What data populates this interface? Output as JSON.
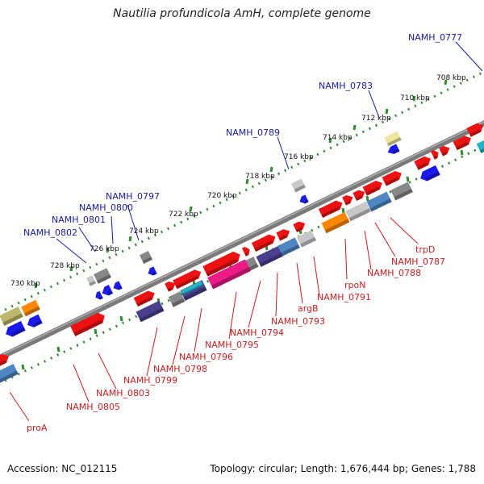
{
  "title": "Nautilia profundicola AmH, complete genome",
  "footer": {
    "accession": "Accession: NC_012115",
    "topology": "Topology: circular; Length: 1,676,444 bp; Genes: 1,788"
  },
  "scale_labels": [
    {
      "label": "708 kbp",
      "kbp": 708
    },
    {
      "label": "710 kbp",
      "kbp": 710
    },
    {
      "label": "712 kbp",
      "kbp": 712
    },
    {
      "label": "714 kbp",
      "kbp": 714
    },
    {
      "label": "716 kbp",
      "kbp": 716
    },
    {
      "label": "718 kbp",
      "kbp": 718
    },
    {
      "label": "720 kbp",
      "kbp": 720
    },
    {
      "label": "722 kbp",
      "kbp": 722
    },
    {
      "label": "724 kbp",
      "kbp": 724
    },
    {
      "label": "726 kbp",
      "kbp": 726
    },
    {
      "label": "728 kbp",
      "kbp": 728
    },
    {
      "label": "730 kbp",
      "kbp": 730
    }
  ],
  "top_gene_labels": [
    "NAMH_0777",
    "NAMH_0783",
    "NAMH_0789",
    "NAMH_0797",
    "NAMH_0800",
    "NAMH_0801",
    "NAMH_0802"
  ],
  "bottom_gene_labels": [
    "trpD",
    "NAMH_0787",
    "NAMH_0788",
    "rpoN",
    "NAMH_0791",
    "argB",
    "NAMH_0793",
    "NAMH_0794",
    "NAMH_0795",
    "NAMH_0796",
    "NAMH_0798",
    "NAMH_0799",
    "NAMH_0803",
    "NAMH_0805",
    "proA"
  ],
  "colors": {
    "backbone": "#7a7a7a",
    "ticks": "#2e8b2e",
    "red": "#ee1111",
    "blue": "#1a1aee",
    "gray": "#888888",
    "light_gray": "#c8c8c8",
    "orange": "#ff8800",
    "steel_blue": "#4f87c4",
    "dark_slate": "#4a3f8f",
    "magenta": "#ee1a88",
    "cyan": "#22b5c8",
    "khaki": "#bdb76b",
    "pale_yellow": "#f0e6a0",
    "top_label": "#1a1aa6",
    "bottom_label": "#cc1f1f"
  }
}
